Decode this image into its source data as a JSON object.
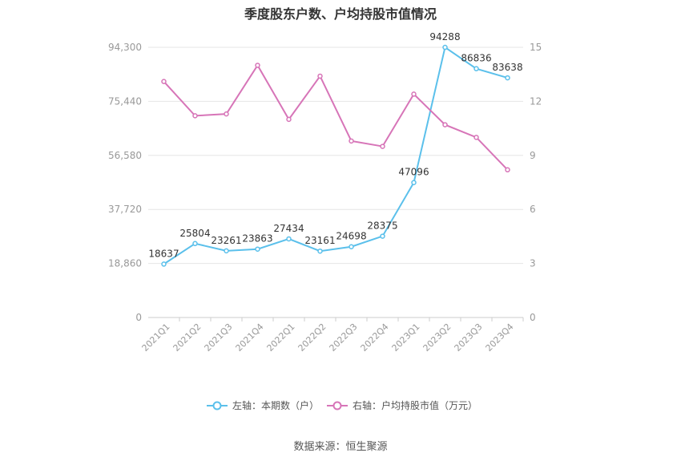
{
  "title": "季度股东户数、户均持股市值情况",
  "source": "数据来源：恒生聚源",
  "colors": {
    "left_series": "#5bc0eb",
    "right_series": "#d775b8",
    "grid": "#e6e6e6",
    "axis_text": "#999999"
  },
  "chart_data": {
    "type": "line",
    "title": "季度股东户数、户均持股市值情况",
    "categories": [
      "2021Q1",
      "2021Q2",
      "2021Q3",
      "2021Q4",
      "2022Q1",
      "2022Q2",
      "2022Q3",
      "2022Q4",
      "2023Q1",
      "2023Q2",
      "2023Q3",
      "2023Q4"
    ],
    "y_left": {
      "ticks": [
        "0",
        "18,860",
        "37,720",
        "56,580",
        "75,440",
        "94,300"
      ],
      "range": [
        0,
        94300
      ]
    },
    "y_right": {
      "ticks": [
        "0",
        "3",
        "6",
        "9",
        "12",
        "15"
      ],
      "range": [
        0,
        15
      ]
    },
    "legend_position": "bottom",
    "grid": true,
    "series": [
      {
        "name": "左轴：本期数（户）",
        "axis": "left",
        "values": [
          18637,
          25804,
          23261,
          23863,
          27434,
          23161,
          24698,
          28375,
          47096,
          94288,
          86836,
          83638
        ],
        "labels": [
          "18637",
          "25804",
          "23261",
          "23863",
          "27434",
          "23161",
          "24698",
          "28375",
          "47096",
          "94288",
          "86836",
          "83638"
        ]
      },
      {
        "name": "右轴：户均持股市值（万元）",
        "axis": "right",
        "values": [
          13.1,
          11.2,
          11.3,
          14.0,
          11.0,
          13.4,
          9.8,
          9.5,
          12.4,
          10.7,
          10.0,
          8.2
        ]
      }
    ]
  }
}
